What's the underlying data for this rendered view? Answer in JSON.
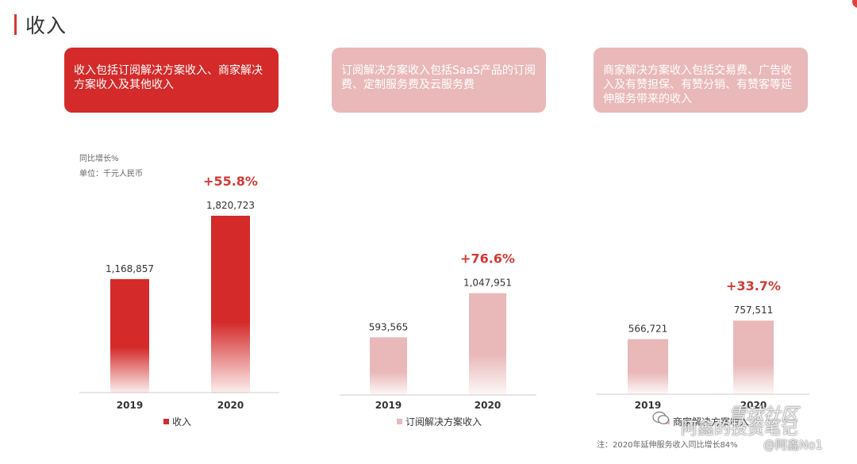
{
  "page": {
    "title": "收入"
  },
  "descriptions": [
    {
      "text": "收入包括订阅解决方案收入、商家解决方案收入及其他收入"
    },
    {
      "text": "订阅解决方案收入包括SaaS产品的订阅费、定制服务费及云服务费"
    },
    {
      "text": "商家解决方案收入包括交易费、广告收入及有赞担保、有赞分销、有赞客等延伸服务带来的收入"
    }
  ],
  "notes": {
    "yoy": "同比增长%",
    "unit": "单位：千元人民币",
    "footnote": "注：2020年延伸服务收入同比增长84%"
  },
  "colors": {
    "primary": "#d42a2a",
    "light": "#e9b8b9",
    "growth": "#d23a34"
  },
  "chart_data": [
    {
      "type": "bar",
      "categories": [
        "2019",
        "2020"
      ],
      "series": [
        {
          "name": "收入",
          "values": [
            1168857,
            1820723
          ]
        }
      ],
      "value_labels": [
        "1,168,857",
        "1,820,723"
      ],
      "growth_label": "+55.8%",
      "ylim": [
        0,
        2100000
      ],
      "legend_position": "bottom"
    },
    {
      "type": "bar",
      "categories": [
        "2019",
        "2020"
      ],
      "series": [
        {
          "name": "订阅解决方案收入",
          "values": [
            593565,
            1047951
          ]
        }
      ],
      "value_labels": [
        "593,565",
        "1,047,951"
      ],
      "growth_label": "+76.6%",
      "ylim": [
        0,
        2100000
      ],
      "legend_position": "bottom"
    },
    {
      "type": "bar",
      "categories": [
        "2019",
        "2020"
      ],
      "series": [
        {
          "name": "商家解决方案收入",
          "values": [
            566721,
            757511
          ]
        }
      ],
      "value_labels": [
        "566,721",
        "757,511"
      ],
      "growth_label": "+33.7%",
      "ylim": [
        0,
        2100000
      ],
      "legend_position": "bottom"
    }
  ],
  "watermarks": {
    "community": "雪球社区",
    "brand": "阿鑫的投资笔记",
    "handle": "@阿鑫No1"
  }
}
